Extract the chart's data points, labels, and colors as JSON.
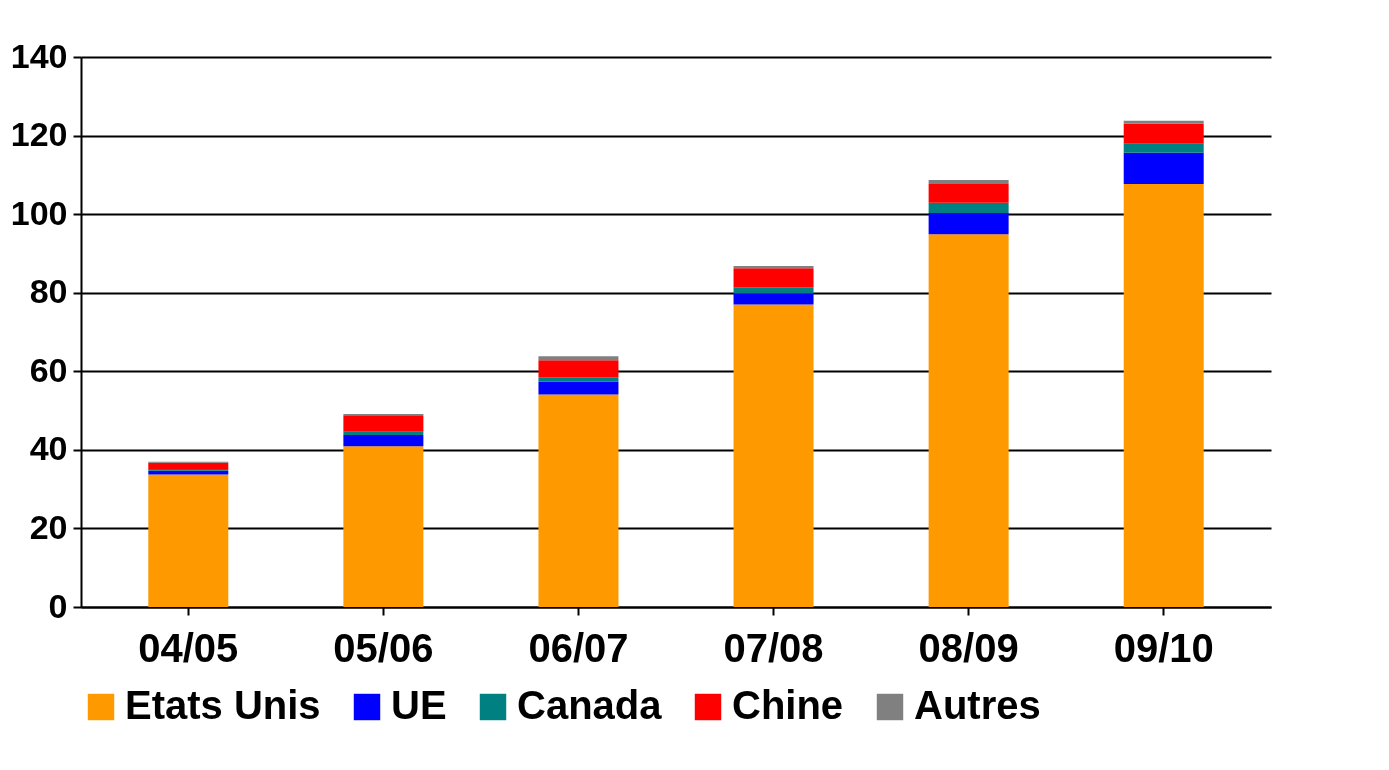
{
  "chart_data": {
    "type": "bar",
    "stacked": true,
    "categories": [
      "04/05",
      "05/06",
      "06/07",
      "07/08",
      "08/09",
      "09/10"
    ],
    "series": [
      {
        "name": "Etats Unis",
        "color": "#ff9900",
        "values": [
          33.7,
          40.9,
          54.1,
          77.0,
          94.9,
          107.7
        ]
      },
      {
        "name": "UE",
        "color": "#0000ff",
        "values": [
          1.0,
          2.9,
          3.3,
          2.8,
          5.4,
          7.9
        ]
      },
      {
        "name": "Canada",
        "color": "#008080",
        "values": [
          0.4,
          0.8,
          1.1,
          1.6,
          2.6,
          2.3
        ]
      },
      {
        "name": "Chine",
        "color": "#ff0000",
        "values": [
          1.6,
          4.2,
          4.3,
          4.8,
          4.8,
          5.1
        ]
      },
      {
        "name": "Autres",
        "color": "#808080",
        "values": [
          0.3,
          0.3,
          1.0,
          0.6,
          1.0,
          0.8
        ]
      }
    ],
    "ylim": [
      0,
      140
    ],
    "yticks": [
      0,
      20,
      40,
      60,
      80,
      100,
      120,
      140
    ],
    "grid": "y",
    "legend": "bottom"
  }
}
